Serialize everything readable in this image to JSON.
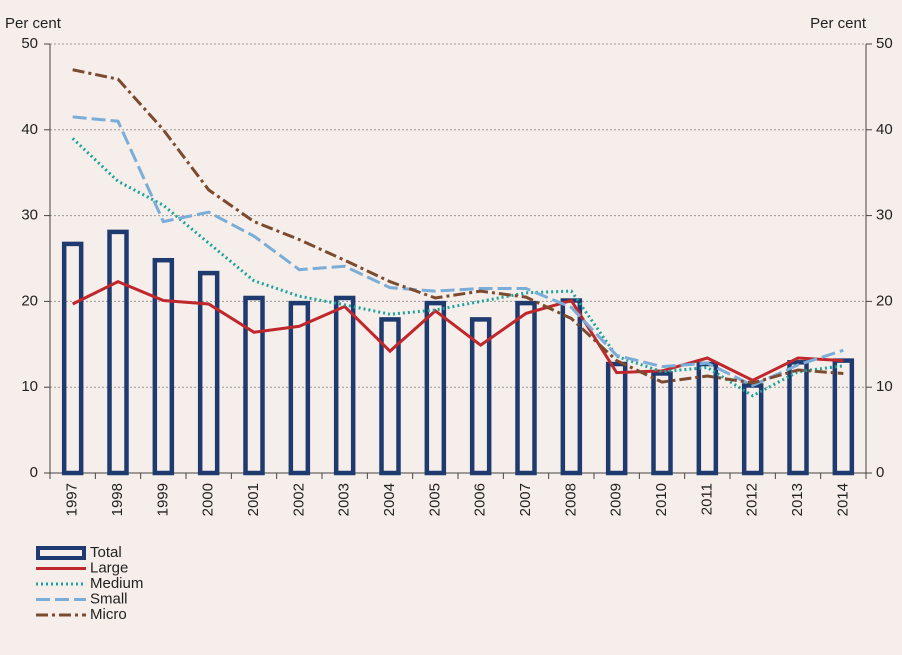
{
  "chart_data": {
    "type": "bar_line",
    "y_label": "Per cent",
    "y2_label": "Per cent",
    "categories": [
      "1997",
      "1998",
      "1999",
      "2000",
      "2001",
      "2002",
      "2003",
      "2004",
      "2005",
      "2006",
      "2007",
      "2008",
      "2009",
      "2010",
      "2011",
      "2012",
      "2013",
      "2014"
    ],
    "series": [
      {
        "name": "Total",
        "type": "bar",
        "color": "#1f3a6e",
        "values": [
          26.7,
          28.1,
          24.8,
          23.3,
          20.4,
          19.8,
          20.4,
          17.9,
          19.8,
          17.9,
          19.8,
          20.1,
          12.7,
          11.6,
          12.7,
          10.2,
          12.9,
          13.1
        ]
      },
      {
        "name": "Large",
        "type": "line",
        "style": "solid",
        "color": "#c0272d",
        "values": [
          19.7,
          22.3,
          20.1,
          19.7,
          16.4,
          17.1,
          19.4,
          14.2,
          18.9,
          14.9,
          18.6,
          20.1,
          11.7,
          11.9,
          13.4,
          10.8,
          13.4,
          13.1
        ]
      },
      {
        "name": "Medium",
        "type": "line",
        "style": "dotted",
        "color": "#1ba39c",
        "values": [
          39.0,
          34.0,
          31.2,
          26.8,
          22.4,
          20.6,
          19.6,
          18.5,
          19.0,
          20.0,
          21.0,
          21.2,
          13.6,
          11.8,
          12.3,
          9.0,
          11.8,
          12.5
        ]
      },
      {
        "name": "Small",
        "type": "line",
        "style": "dashed",
        "color": "#7aadd8",
        "values": [
          41.5,
          41.0,
          29.3,
          30.4,
          27.6,
          23.7,
          24.1,
          21.6,
          21.2,
          21.5,
          21.5,
          19.3,
          13.7,
          12.4,
          12.8,
          10.2,
          12.6,
          14.3
        ]
      },
      {
        "name": "Micro",
        "type": "line",
        "style": "dashdot",
        "color": "#7b4a2f",
        "values": [
          47.0,
          45.9,
          40.0,
          33.0,
          29.3,
          27.2,
          24.8,
          22.3,
          20.4,
          21.2,
          20.5,
          18.0,
          13.1,
          10.6,
          11.3,
          10.5,
          12.0,
          11.6
        ]
      }
    ],
    "ylim": [
      0,
      50
    ],
    "yticks": [
      0,
      10,
      20,
      30,
      40,
      50
    ],
    "y2lim": [
      0,
      50
    ],
    "y2ticks": [
      0,
      10,
      20,
      30,
      40,
      50
    ],
    "grid": true
  }
}
